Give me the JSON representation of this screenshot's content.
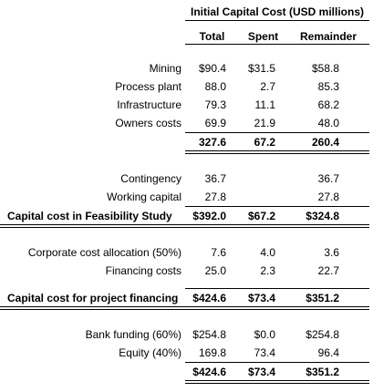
{
  "table": {
    "title": "Initial Capital Cost (USD millions)",
    "columns": [
      "Total",
      "Spent",
      "Remainder"
    ],
    "rows": [
      {
        "label": "Mining",
        "values": [
          "$90.4",
          "$31.5",
          "$58.8"
        ]
      },
      {
        "label": "Process plant",
        "values": [
          "88.0",
          "2.7",
          "85.3"
        ]
      },
      {
        "label": "Infrastructure",
        "values": [
          "79.3",
          "11.1",
          "68.2"
        ]
      },
      {
        "label": "Owners costs",
        "values": [
          "69.9",
          "21.9",
          "48.0"
        ]
      },
      {
        "label": "",
        "values": [
          "327.6",
          "67.2",
          "260.4"
        ]
      },
      {
        "label": "Contingency",
        "values": [
          "36.7",
          "",
          "36.7"
        ]
      },
      {
        "label": "Working capital",
        "values": [
          "27.8",
          "",
          "27.8"
        ]
      },
      {
        "label": "Capital cost in Feasibility Study",
        "values": [
          "$392.0",
          "$67.2",
          "$324.8"
        ]
      },
      {
        "label": "Corporate cost allocation (50%)",
        "values": [
          "7.6",
          "4.0",
          "3.6"
        ]
      },
      {
        "label": "Financing costs",
        "values": [
          "25.0",
          "2.3",
          "22.7"
        ]
      },
      {
        "label": "Capital cost for project financing",
        "values": [
          "$424.6",
          "$73.4",
          "$351.2"
        ]
      },
      {
        "label": "Bank funding (60%)",
        "values": [
          "$254.8",
          "$0.0",
          "$254.8"
        ]
      },
      {
        "label": "Equity (40%)",
        "values": [
          "169.8",
          "73.4",
          "96.4"
        ]
      },
      {
        "label": "",
        "values": [
          "$424.6",
          "$73.4",
          "$351.2"
        ]
      }
    ]
  }
}
